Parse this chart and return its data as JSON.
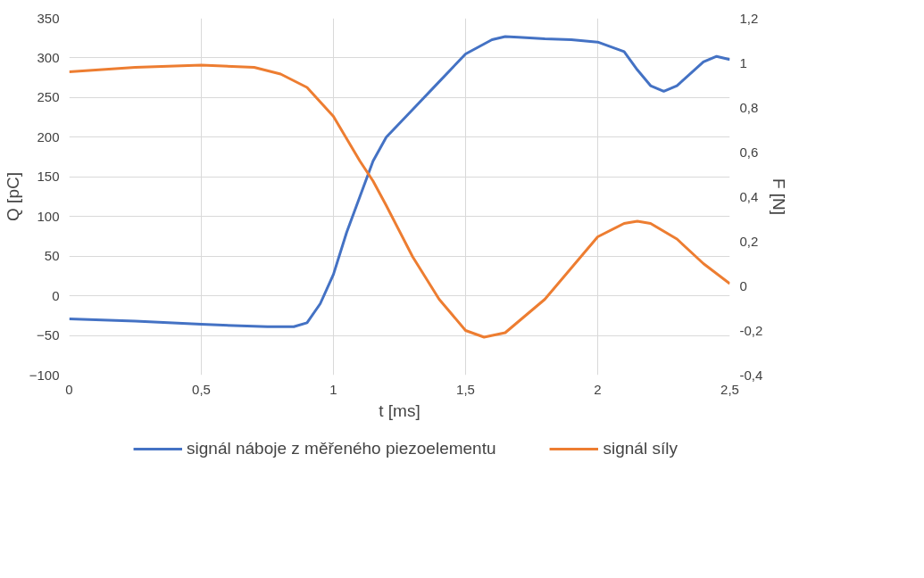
{
  "chart_data": {
    "type": "line",
    "xlabel": "t [ms]",
    "ylabel": "Q [pC]",
    "y2label": "F [N]",
    "xlim": [
      0,
      2.5
    ],
    "xticks": [
      0,
      {
        "value": 0.5,
        "label": "0,5"
      },
      1,
      {
        "value": 1.5,
        "label": "1,5"
      },
      2,
      {
        "value": 2.5,
        "label": "2,5"
      }
    ],
    "ylim": [
      -100,
      350
    ],
    "yticks": [
      -100,
      -50,
      0,
      50,
      100,
      150,
      200,
      250,
      300,
      350
    ],
    "y2lim": [
      -0.4,
      1.2
    ],
    "y2ticks": [
      {
        "value": -0.4,
        "label": "-0,4"
      },
      {
        "value": -0.2,
        "label": "-0,2"
      },
      0,
      {
        "value": 0.2,
        "label": "0,2"
      },
      {
        "value": 0.4,
        "label": "0,4"
      },
      {
        "value": 0.6,
        "label": "0,6"
      },
      {
        "value": 0.8,
        "label": "0,8"
      },
      1,
      {
        "value": 1.2,
        "label": "1,2"
      }
    ],
    "grid": true,
    "legend": "bottom",
    "marker": "none",
    "line_style": "solid",
    "series": [
      {
        "name": "signál náboje z měřeného piezoelementu",
        "color": "#4472c4",
        "x": [
          0,
          0.25,
          0.5,
          0.75,
          0.85,
          0.9,
          0.95,
          1.0,
          1.05,
          1.1,
          1.15,
          1.2,
          1.3,
          1.4,
          1.5,
          1.6,
          1.65,
          1.7,
          1.8,
          1.9,
          2.0,
          2.1,
          2.15,
          2.2,
          2.25,
          2.3,
          2.4,
          2.45,
          2.5
        ],
        "values": [
          -29,
          -32,
          -36,
          -39,
          -39,
          -34,
          -10,
          27,
          80,
          125,
          170,
          200,
          235,
          270,
          305,
          323,
          327,
          326,
          324,
          323,
          320,
          308,
          285,
          265,
          258,
          265,
          295,
          302,
          298
        ]
      },
      {
        "name": "signál síly",
        "color": "#ed7d31",
        "axis": "y2",
        "x": [
          0,
          0.25,
          0.5,
          0.7,
          0.8,
          0.9,
          1.0,
          1.1,
          1.15,
          1.2,
          1.3,
          1.4,
          1.5,
          1.57,
          1.65,
          1.8,
          1.9,
          2.0,
          2.1,
          2.15,
          2.2,
          2.3,
          2.4,
          2.5
        ],
        "values": [
          0.96,
          0.98,
          0.99,
          0.98,
          0.95,
          0.89,
          0.76,
          0.56,
          0.47,
          0.36,
          0.13,
          -0.06,
          -0.2,
          -0.23,
          -0.21,
          -0.06,
          0.08,
          0.22,
          0.28,
          0.29,
          0.28,
          0.21,
          0.1,
          0.01
        ]
      }
    ]
  }
}
